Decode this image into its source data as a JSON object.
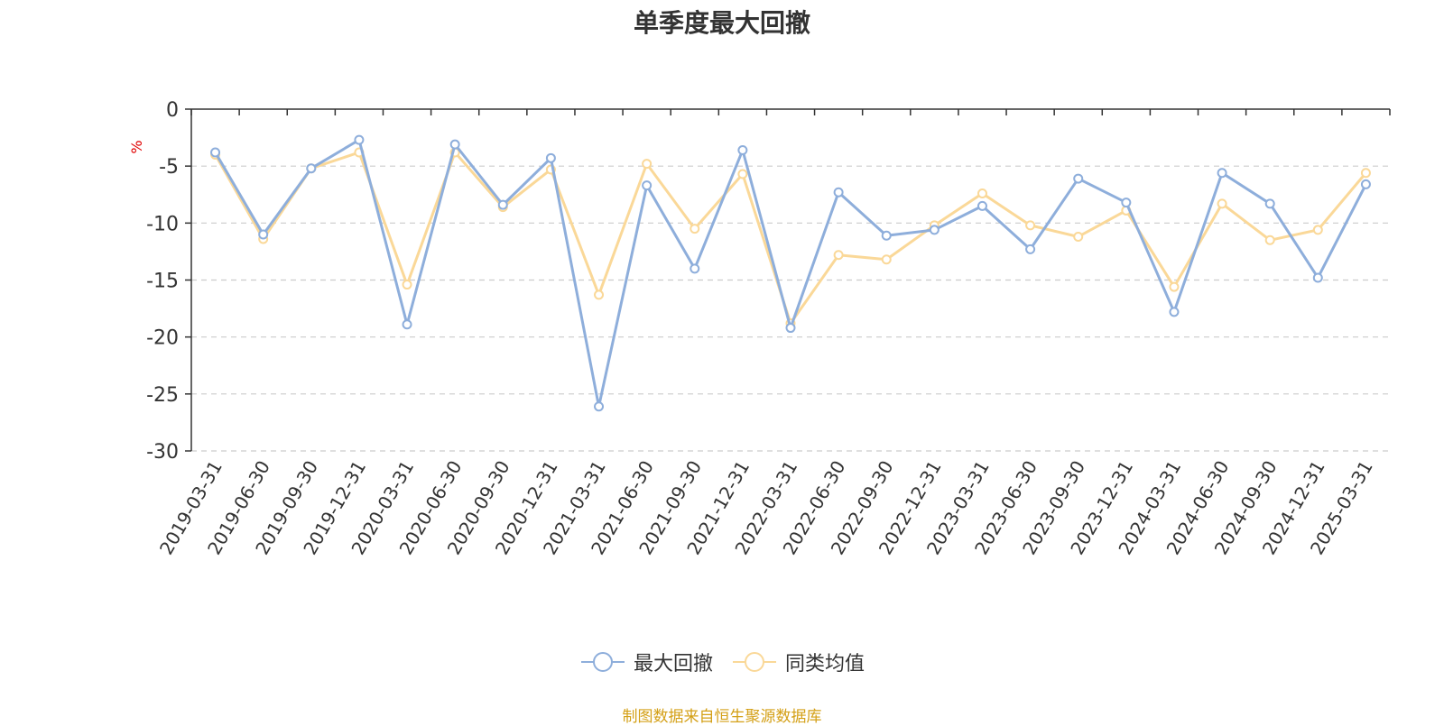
{
  "chart_data": {
    "type": "line",
    "title": "单季度最大回撤",
    "ylabel": "%",
    "ylim": [
      -30,
      0
    ],
    "yticks": [
      0,
      -5,
      -10,
      -15,
      -20,
      -25,
      -30
    ],
    "grid": true,
    "legend_position": "bottom",
    "categories": [
      "2019-03-31",
      "2019-06-30",
      "2019-09-30",
      "2019-12-31",
      "2020-03-31",
      "2020-06-30",
      "2020-09-30",
      "2020-12-31",
      "2021-03-31",
      "2021-06-30",
      "2021-09-30",
      "2021-12-31",
      "2022-03-31",
      "2022-06-30",
      "2022-09-30",
      "2022-12-31",
      "2023-03-31",
      "2023-06-30",
      "2023-09-30",
      "2023-12-31",
      "2024-03-31",
      "2024-06-30",
      "2024-09-30",
      "2024-12-31",
      "2025-03-31"
    ],
    "series": [
      {
        "name": "最大回撤",
        "color": "#8eaedb",
        "values": [
          -3.8,
          -11.0,
          -5.2,
          -2.7,
          -18.9,
          -3.1,
          -8.4,
          -4.3,
          -26.1,
          -6.7,
          -14.0,
          -3.6,
          -19.2,
          -7.3,
          -11.1,
          -10.6,
          -8.5,
          -12.3,
          -6.1,
          -8.2,
          -17.8,
          -5.6,
          -8.3,
          -14.8,
          -6.6
        ]
      },
      {
        "name": "同类均值",
        "color": "#fad898",
        "values": [
          -4.0,
          -11.4,
          -5.2,
          -3.8,
          -15.4,
          -3.8,
          -8.6,
          -5.3,
          -16.3,
          -4.8,
          -10.5,
          -5.7,
          -18.8,
          -12.8,
          -13.2,
          -10.2,
          -7.4,
          -10.2,
          -11.2,
          -8.9,
          -15.6,
          -8.3,
          -11.5,
          -10.6,
          -5.6
        ]
      }
    ]
  },
  "source_note": "制图数据来自恒生聚源数据库"
}
